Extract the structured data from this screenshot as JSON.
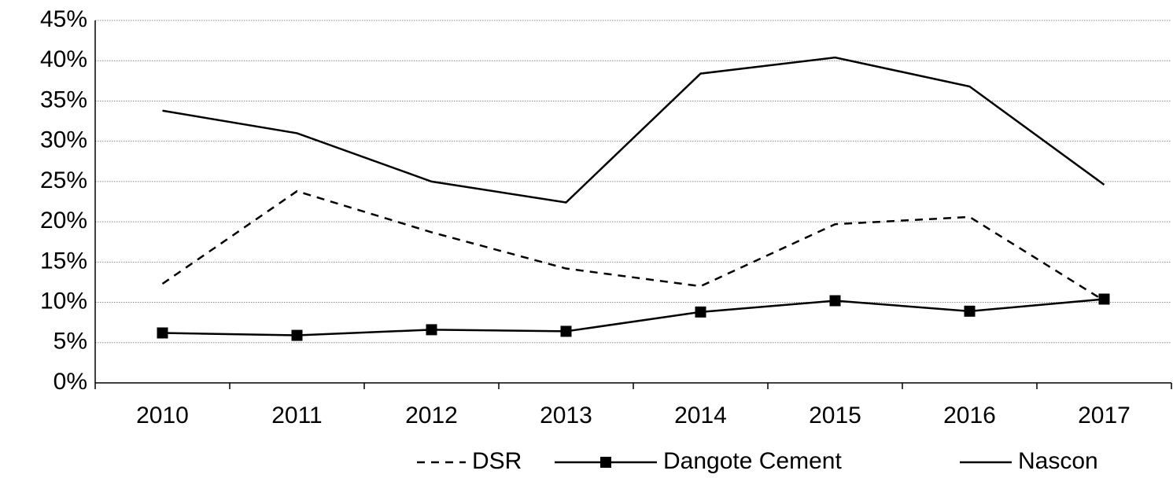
{
  "chart_data": {
    "type": "line",
    "categories": [
      "2010",
      "2011",
      "2012",
      "2013",
      "2014",
      "2015",
      "2016",
      "2017"
    ],
    "series": [
      {
        "name": "DSR",
        "color": "#000000",
        "dash": true,
        "marker": null,
        "values": [
          12.3,
          23.8,
          18.7,
          14.2,
          12.0,
          19.7,
          20.6,
          10.2
        ]
      },
      {
        "name": "Dangote Cement",
        "color": "#000000",
        "dash": false,
        "marker": "square",
        "values": [
          6.2,
          5.9,
          6.6,
          6.4,
          8.8,
          10.2,
          8.9,
          10.4
        ]
      },
      {
        "name": "Nascon",
        "color": "#000000",
        "dash": false,
        "marker": null,
        "values": [
          33.8,
          31.0,
          25.0,
          22.4,
          38.4,
          40.4,
          36.8,
          24.6
        ]
      }
    ],
    "ylim": [
      0,
      45
    ],
    "yticks": [
      {
        "value": 0,
        "label": "0%"
      },
      {
        "value": 5,
        "label": "5%"
      },
      {
        "value": 10,
        "label": "10%"
      },
      {
        "value": 15,
        "label": "15%"
      },
      {
        "value": 20,
        "label": "20%"
      },
      {
        "value": 25,
        "label": "25%"
      },
      {
        "value": 30,
        "label": "30%"
      },
      {
        "value": 35,
        "label": "35%"
      },
      {
        "value": 40,
        "label": "40%"
      },
      {
        "value": 45,
        "label": "45%"
      }
    ],
    "grid": true,
    "legend": "bottom"
  }
}
